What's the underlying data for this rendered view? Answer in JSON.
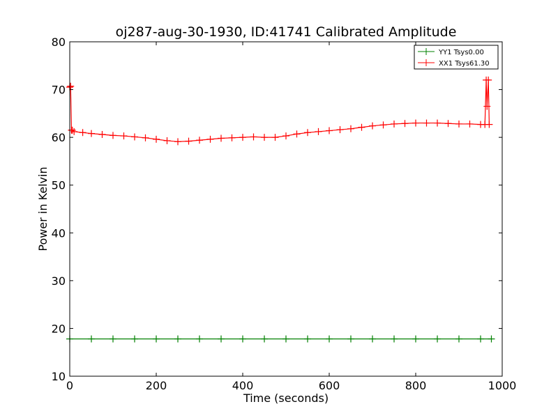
{
  "chart_data": {
    "type": "line",
    "title": "oj287-aug-30-1930, ID:41741 Calibrated Amplitude",
    "xlabel": "Time (seconds)",
    "ylabel": "Power in Kelvin",
    "xlim": [
      0,
      1000
    ],
    "ylim": [
      10,
      80
    ],
    "xticks": [
      "0",
      "200",
      "400",
      "600",
      "800",
      "1000"
    ],
    "yticks": [
      "10",
      "20",
      "30",
      "40",
      "50",
      "60",
      "70",
      "80"
    ],
    "grid": false,
    "legend_position": "top-right",
    "series": [
      {
        "name": "YY1 Tsys0.00",
        "color": "#008000",
        "marker": "+",
        "x": [
          0,
          50,
          100,
          150,
          200,
          250,
          300,
          350,
          400,
          450,
          500,
          550,
          600,
          650,
          700,
          750,
          800,
          850,
          900,
          950,
          975
        ],
        "y": [
          17.8,
          17.8,
          17.8,
          17.8,
          17.8,
          17.8,
          17.8,
          17.8,
          17.8,
          17.8,
          17.8,
          17.8,
          17.8,
          17.8,
          17.8,
          17.8,
          17.8,
          17.8,
          17.8,
          17.8,
          17.8
        ]
      },
      {
        "name": "XX1 Tsys61.30",
        "color": "#ff0000",
        "marker": "+",
        "x": [
          0,
          2,
          4,
          6,
          10,
          30,
          50,
          75,
          100,
          125,
          150,
          175,
          200,
          225,
          250,
          275,
          300,
          325,
          350,
          375,
          400,
          425,
          450,
          475,
          500,
          525,
          550,
          575,
          600,
          625,
          650,
          675,
          700,
          725,
          750,
          775,
          800,
          825,
          850,
          875,
          900,
          925,
          950,
          960,
          963,
          965,
          968,
          970
        ],
        "y": [
          70.5,
          70.7,
          61.5,
          61.5,
          61.2,
          61.0,
          60.8,
          60.6,
          60.4,
          60.3,
          60.1,
          59.9,
          59.6,
          59.3,
          59.1,
          59.2,
          59.4,
          59.6,
          59.8,
          59.9,
          60.0,
          60.1,
          60.0,
          60.0,
          60.3,
          60.7,
          61.0,
          61.2,
          61.4,
          61.6,
          61.8,
          62.1,
          62.4,
          62.6,
          62.8,
          62.9,
          63.0,
          63.0,
          63.0,
          62.9,
          62.8,
          62.8,
          62.7,
          62.7,
          72.0,
          66.5,
          72.0,
          62.7
        ]
      }
    ]
  }
}
